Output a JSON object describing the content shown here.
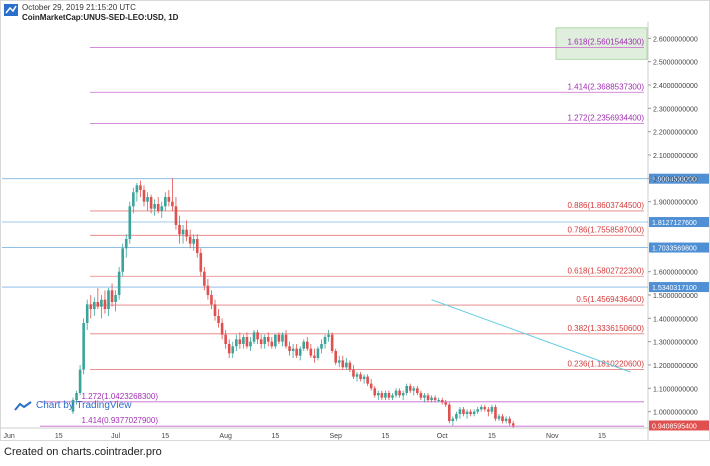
{
  "header": {
    "datetime": "October 29, 2019 21:15:20 UTC",
    "symbol": "CoinMarketCap:UNUS-SED-LEO:USD, 1D"
  },
  "watermark": {
    "text": "Chart by TradingView",
    "icon": "tradingview-logo-icon"
  },
  "footer": {
    "text": "Created on charts.cointrader.pro"
  },
  "colors": {
    "up": "#3aa39a",
    "down": "#e0504f",
    "fib_red": "#e57f7f",
    "fib_purple": "#c766cc",
    "fib_purple_text": "#a12fb3",
    "fib_red_text": "#d63a3a",
    "blue_line": "#7fb6e0",
    "trend": "#5fcbe0",
    "price_tag": "#4f8fd4",
    "last_price_tag": "#e0504f"
  },
  "chart_data": {
    "type": "candlestick",
    "x_ticks": [
      "Jun",
      "15",
      "Jul",
      "15",
      "Aug",
      "15",
      "Sep",
      "15",
      "Oct",
      "15",
      "Nov",
      "15"
    ],
    "y_ticks": [
      "2.6000000000",
      "2.5000000000",
      "2.4000000000",
      "2.3000000000",
      "2.2000000000",
      "2.1000000000",
      "2.0000000000",
      "1.9000000000",
      "1.6000000000",
      "1.5000000000",
      "1.4000000000",
      "1.3000000000",
      "1.2000000000",
      "1.1000000000",
      "1.0000000000"
    ],
    "ylim": [
      0.93,
      2.67
    ],
    "last_price": "0.9408595400",
    "price_levels": [
      {
        "label": "1.9984599200",
        "value": 1.99846
      },
      {
        "label": "1.8127127600",
        "value": 1.81271
      },
      {
        "label": "1.7033569800",
        "value": 1.70336
      },
      {
        "label": "1.5340317100",
        "value": 1.53403
      }
    ],
    "fib_levels": [
      {
        "label": "1.618(2.5601544300)",
        "value": 2.56015,
        "color": "purple",
        "highlight": true
      },
      {
        "label": "1.414(2.3688537300)",
        "value": 2.36885,
        "color": "purple"
      },
      {
        "label": "1.272(2.2356934400)",
        "value": 2.23569,
        "color": "purple"
      },
      {
        "label": "0.886(1.8603744500)",
        "value": 1.86037,
        "color": "red"
      },
      {
        "label": "0.786(1.7558587000)",
        "value": 1.75586,
        "color": "red"
      },
      {
        "label": "0.618(1.5802722300)",
        "value": 1.58027,
        "color": "red"
      },
      {
        "label": "0.5(1.4569436400)",
        "value": 1.45694,
        "color": "red"
      },
      {
        "label": "0.382(1.3336150600)",
        "value": 1.33362,
        "color": "red"
      },
      {
        "label": "0.236(1.1810220600)",
        "value": 1.18102,
        "color": "red"
      },
      {
        "label": "1.272(1.0423268300)",
        "value": 1.04233,
        "color": "purple",
        "left_label": true
      },
      {
        "label": "1.414(0.9377027900)",
        "value": 0.9377,
        "color": "purple",
        "left_label": true
      }
    ],
    "trendline": {
      "from": {
        "day": 119,
        "price": 1.48
      },
      "to": {
        "day": 175,
        "price": 1.17
      }
    },
    "candles": [
      {
        "d": 18,
        "o": 1.0,
        "h": 1.06,
        "l": 0.99,
        "c": 1.05
      },
      {
        "d": 19,
        "o": 1.05,
        "h": 1.09,
        "l": 1.03,
        "c": 1.08
      },
      {
        "d": 20,
        "o": 1.08,
        "h": 1.2,
        "l": 1.07,
        "c": 1.18
      },
      {
        "d": 21,
        "o": 1.18,
        "h": 1.4,
        "l": 1.16,
        "c": 1.38
      },
      {
        "d": 22,
        "o": 1.38,
        "h": 1.48,
        "l": 1.35,
        "c": 1.46
      },
      {
        "d": 23,
        "o": 1.46,
        "h": 1.5,
        "l": 1.4,
        "c": 1.44
      },
      {
        "d": 24,
        "o": 1.44,
        "h": 1.49,
        "l": 1.41,
        "c": 1.47
      },
      {
        "d": 25,
        "o": 1.47,
        "h": 1.53,
        "l": 1.44,
        "c": 1.45
      },
      {
        "d": 26,
        "o": 1.45,
        "h": 1.5,
        "l": 1.4,
        "c": 1.48
      },
      {
        "d": 27,
        "o": 1.48,
        "h": 1.52,
        "l": 1.42,
        "c": 1.44
      },
      {
        "d": 28,
        "o": 1.44,
        "h": 1.53,
        "l": 1.41,
        "c": 1.52
      },
      {
        "d": 29,
        "o": 1.52,
        "h": 1.55,
        "l": 1.45,
        "c": 1.47
      },
      {
        "d": 30,
        "o": 1.47,
        "h": 1.52,
        "l": 1.43,
        "c": 1.5
      },
      {
        "d": 31,
        "o": 1.5,
        "h": 1.62,
        "l": 1.48,
        "c": 1.6
      },
      {
        "d": 32,
        "o": 1.6,
        "h": 1.72,
        "l": 1.58,
        "c": 1.7
      },
      {
        "d": 33,
        "o": 1.7,
        "h": 1.76,
        "l": 1.66,
        "c": 1.74
      },
      {
        "d": 34,
        "o": 1.74,
        "h": 1.9,
        "l": 1.72,
        "c": 1.88
      },
      {
        "d": 35,
        "o": 1.88,
        "h": 1.96,
        "l": 1.85,
        "c": 1.94
      },
      {
        "d": 36,
        "o": 1.94,
        "h": 1.98,
        "l": 1.9,
        "c": 1.97
      },
      {
        "d": 37,
        "o": 1.97,
        "h": 1.99,
        "l": 1.92,
        "c": 1.95
      },
      {
        "d": 38,
        "o": 1.95,
        "h": 1.97,
        "l": 1.88,
        "c": 1.9
      },
      {
        "d": 39,
        "o": 1.9,
        "h": 1.94,
        "l": 1.86,
        "c": 1.92
      },
      {
        "d": 40,
        "o": 1.92,
        "h": 1.93,
        "l": 1.85,
        "c": 1.87
      },
      {
        "d": 41,
        "o": 1.87,
        "h": 1.91,
        "l": 1.84,
        "c": 1.89
      },
      {
        "d": 42,
        "o": 1.89,
        "h": 1.92,
        "l": 1.85,
        "c": 1.86
      },
      {
        "d": 43,
        "o": 1.86,
        "h": 1.9,
        "l": 1.83,
        "c": 1.88
      },
      {
        "d": 44,
        "o": 1.88,
        "h": 1.94,
        "l": 1.86,
        "c": 1.92
      },
      {
        "d": 45,
        "o": 1.92,
        "h": 1.95,
        "l": 1.88,
        "c": 1.9
      },
      {
        "d": 46,
        "o": 1.9,
        "h": 2.0,
        "l": 1.86,
        "c": 1.88
      },
      {
        "d": 47,
        "o": 1.88,
        "h": 1.92,
        "l": 1.78,
        "c": 1.8
      },
      {
        "d": 48,
        "o": 1.8,
        "h": 1.84,
        "l": 1.72,
        "c": 1.76
      },
      {
        "d": 49,
        "o": 1.76,
        "h": 1.8,
        "l": 1.72,
        "c": 1.78
      },
      {
        "d": 50,
        "o": 1.78,
        "h": 1.82,
        "l": 1.73,
        "c": 1.75
      },
      {
        "d": 51,
        "o": 1.75,
        "h": 1.78,
        "l": 1.7,
        "c": 1.72
      },
      {
        "d": 52,
        "o": 1.72,
        "h": 1.76,
        "l": 1.69,
        "c": 1.74
      },
      {
        "d": 53,
        "o": 1.74,
        "h": 1.76,
        "l": 1.66,
        "c": 1.68
      },
      {
        "d": 54,
        "o": 1.68,
        "h": 1.7,
        "l": 1.58,
        "c": 1.6
      },
      {
        "d": 55,
        "o": 1.6,
        "h": 1.62,
        "l": 1.52,
        "c": 1.54
      },
      {
        "d": 56,
        "o": 1.54,
        "h": 1.57,
        "l": 1.48,
        "c": 1.5
      },
      {
        "d": 57,
        "o": 1.5,
        "h": 1.52,
        "l": 1.44,
        "c": 1.46
      },
      {
        "d": 58,
        "o": 1.46,
        "h": 1.48,
        "l": 1.39,
        "c": 1.41
      },
      {
        "d": 59,
        "o": 1.41,
        "h": 1.44,
        "l": 1.36,
        "c": 1.38
      },
      {
        "d": 60,
        "o": 1.38,
        "h": 1.4,
        "l": 1.31,
        "c": 1.33
      },
      {
        "d": 61,
        "o": 1.33,
        "h": 1.35,
        "l": 1.27,
        "c": 1.29
      },
      {
        "d": 62,
        "o": 1.29,
        "h": 1.31,
        "l": 1.23,
        "c": 1.25
      },
      {
        "d": 63,
        "o": 1.25,
        "h": 1.3,
        "l": 1.23,
        "c": 1.28
      },
      {
        "d": 64,
        "o": 1.28,
        "h": 1.33,
        "l": 1.26,
        "c": 1.31
      },
      {
        "d": 65,
        "o": 1.31,
        "h": 1.34,
        "l": 1.27,
        "c": 1.29
      },
      {
        "d": 66,
        "o": 1.29,
        "h": 1.33,
        "l": 1.27,
        "c": 1.32
      },
      {
        "d": 67,
        "o": 1.32,
        "h": 1.34,
        "l": 1.27,
        "c": 1.28
      },
      {
        "d": 68,
        "o": 1.28,
        "h": 1.32,
        "l": 1.26,
        "c": 1.3
      },
      {
        "d": 69,
        "o": 1.3,
        "h": 1.35,
        "l": 1.29,
        "c": 1.34
      },
      {
        "d": 70,
        "o": 1.34,
        "h": 1.35,
        "l": 1.29,
        "c": 1.31
      },
      {
        "d": 71,
        "o": 1.31,
        "h": 1.33,
        "l": 1.27,
        "c": 1.29
      },
      {
        "d": 72,
        "o": 1.29,
        "h": 1.33,
        "l": 1.27,
        "c": 1.32
      },
      {
        "d": 73,
        "o": 1.32,
        "h": 1.34,
        "l": 1.28,
        "c": 1.3
      },
      {
        "d": 74,
        "o": 1.3,
        "h": 1.32,
        "l": 1.27,
        "c": 1.28
      },
      {
        "d": 75,
        "o": 1.28,
        "h": 1.33,
        "l": 1.27,
        "c": 1.33
      },
      {
        "d": 76,
        "o": 1.33,
        "h": 1.34,
        "l": 1.29,
        "c": 1.3
      },
      {
        "d": 77,
        "o": 1.3,
        "h": 1.34,
        "l": 1.28,
        "c": 1.33
      },
      {
        "d": 78,
        "o": 1.33,
        "h": 1.35,
        "l": 1.27,
        "c": 1.28
      },
      {
        "d": 79,
        "o": 1.28,
        "h": 1.3,
        "l": 1.24,
        "c": 1.26
      },
      {
        "d": 80,
        "o": 1.26,
        "h": 1.29,
        "l": 1.23,
        "c": 1.27
      },
      {
        "d": 81,
        "o": 1.27,
        "h": 1.29,
        "l": 1.23,
        "c": 1.24
      },
      {
        "d": 82,
        "o": 1.24,
        "h": 1.28,
        "l": 1.22,
        "c": 1.27
      },
      {
        "d": 83,
        "o": 1.27,
        "h": 1.31,
        "l": 1.26,
        "c": 1.3
      },
      {
        "d": 84,
        "o": 1.3,
        "h": 1.32,
        "l": 1.26,
        "c": 1.27
      },
      {
        "d": 85,
        "o": 1.27,
        "h": 1.29,
        "l": 1.23,
        "c": 1.24
      },
      {
        "d": 86,
        "o": 1.24,
        "h": 1.27,
        "l": 1.21,
        "c": 1.23
      },
      {
        "d": 87,
        "o": 1.23,
        "h": 1.28,
        "l": 1.22,
        "c": 1.27
      },
      {
        "d": 88,
        "o": 1.27,
        "h": 1.31,
        "l": 1.25,
        "c": 1.29
      },
      {
        "d": 89,
        "o": 1.29,
        "h": 1.33,
        "l": 1.27,
        "c": 1.32
      },
      {
        "d": 90,
        "o": 1.32,
        "h": 1.35,
        "l": 1.3,
        "c": 1.33
      },
      {
        "d": 91,
        "o": 1.33,
        "h": 1.34,
        "l": 1.25,
        "c": 1.26
      },
      {
        "d": 92,
        "o": 1.26,
        "h": 1.27,
        "l": 1.2,
        "c": 1.21
      },
      {
        "d": 93,
        "o": 1.21,
        "h": 1.24,
        "l": 1.19,
        "c": 1.22
      },
      {
        "d": 94,
        "o": 1.22,
        "h": 1.24,
        "l": 1.18,
        "c": 1.19
      },
      {
        "d": 95,
        "o": 1.19,
        "h": 1.23,
        "l": 1.18,
        "c": 1.21
      },
      {
        "d": 96,
        "o": 1.21,
        "h": 1.22,
        "l": 1.17,
        "c": 1.18
      },
      {
        "d": 97,
        "o": 1.18,
        "h": 1.2,
        "l": 1.14,
        "c": 1.15
      },
      {
        "d": 98,
        "o": 1.15,
        "h": 1.17,
        "l": 1.13,
        "c": 1.16
      },
      {
        "d": 99,
        "o": 1.16,
        "h": 1.17,
        "l": 1.13,
        "c": 1.14
      },
      {
        "d": 100,
        "o": 1.14,
        "h": 1.16,
        "l": 1.12,
        "c": 1.15
      },
      {
        "d": 101,
        "o": 1.15,
        "h": 1.16,
        "l": 1.11,
        "c": 1.12
      },
      {
        "d": 102,
        "o": 1.12,
        "h": 1.14,
        "l": 1.09,
        "c": 1.1
      },
      {
        "d": 103,
        "o": 1.1,
        "h": 1.11,
        "l": 1.06,
        "c": 1.07
      },
      {
        "d": 104,
        "o": 1.07,
        "h": 1.09,
        "l": 1.05,
        "c": 1.08
      },
      {
        "d": 105,
        "o": 1.08,
        "h": 1.09,
        "l": 1.05,
        "c": 1.06
      },
      {
        "d": 106,
        "o": 1.06,
        "h": 1.09,
        "l": 1.05,
        "c": 1.08
      },
      {
        "d": 107,
        "o": 1.08,
        "h": 1.09,
        "l": 1.05,
        "c": 1.06
      },
      {
        "d": 108,
        "o": 1.06,
        "h": 1.08,
        "l": 1.05,
        "c": 1.07
      },
      {
        "d": 109,
        "o": 1.07,
        "h": 1.1,
        "l": 1.06,
        "c": 1.09
      },
      {
        "d": 110,
        "o": 1.09,
        "h": 1.1,
        "l": 1.06,
        "c": 1.07
      },
      {
        "d": 111,
        "o": 1.07,
        "h": 1.09,
        "l": 1.05,
        "c": 1.08
      },
      {
        "d": 112,
        "o": 1.08,
        "h": 1.12,
        "l": 1.07,
        "c": 1.11
      },
      {
        "d": 113,
        "o": 1.11,
        "h": 1.12,
        "l": 1.08,
        "c": 1.09
      },
      {
        "d": 114,
        "o": 1.09,
        "h": 1.11,
        "l": 1.07,
        "c": 1.1
      },
      {
        "d": 115,
        "o": 1.1,
        "h": 1.11,
        "l": 1.07,
        "c": 1.08
      },
      {
        "d": 116,
        "o": 1.08,
        "h": 1.09,
        "l": 1.05,
        "c": 1.06
      },
      {
        "d": 117,
        "o": 1.06,
        "h": 1.08,
        "l": 1.04,
        "c": 1.07
      },
      {
        "d": 118,
        "o": 1.07,
        "h": 1.08,
        "l": 1.04,
        "c": 1.05
      },
      {
        "d": 119,
        "o": 1.05,
        "h": 1.07,
        "l": 1.04,
        "c": 1.06
      },
      {
        "d": 120,
        "o": 1.06,
        "h": 1.07,
        "l": 1.04,
        "c": 1.05
      },
      {
        "d": 121,
        "o": 1.05,
        "h": 1.06,
        "l": 1.04,
        "c": 1.05
      },
      {
        "d": 122,
        "o": 1.05,
        "h": 1.06,
        "l": 1.03,
        "c": 1.04
      },
      {
        "d": 123,
        "o": 1.04,
        "h": 1.05,
        "l": 1.02,
        "c": 1.03
      },
      {
        "d": 124,
        "o": 1.03,
        "h": 1.04,
        "l": 0.95,
        "c": 0.96
      },
      {
        "d": 125,
        "o": 0.96,
        "h": 0.98,
        "l": 0.94,
        "c": 0.97
      },
      {
        "d": 126,
        "o": 0.97,
        "h": 1.0,
        "l": 0.96,
        "c": 0.99
      },
      {
        "d": 127,
        "o": 0.99,
        "h": 1.02,
        "l": 0.97,
        "c": 1.01
      },
      {
        "d": 128,
        "o": 1.01,
        "h": 1.02,
        "l": 0.98,
        "c": 0.99
      },
      {
        "d": 129,
        "o": 0.99,
        "h": 1.01,
        "l": 0.97,
        "c": 1.0
      },
      {
        "d": 130,
        "o": 1.0,
        "h": 1.01,
        "l": 0.98,
        "c": 0.99
      },
      {
        "d": 131,
        "o": 0.99,
        "h": 1.01,
        "l": 0.98,
        "c": 1.0
      },
      {
        "d": 132,
        "o": 1.0,
        "h": 1.02,
        "l": 0.99,
        "c": 1.01
      },
      {
        "d": 133,
        "o": 1.01,
        "h": 1.03,
        "l": 1.0,
        "c": 1.02
      },
      {
        "d": 134,
        "o": 1.02,
        "h": 1.03,
        "l": 1.0,
        "c": 1.01
      },
      {
        "d": 135,
        "o": 1.01,
        "h": 1.02,
        "l": 0.98,
        "c": 1.0
      },
      {
        "d": 136,
        "o": 1.0,
        "h": 1.03,
        "l": 0.99,
        "c": 1.02
      },
      {
        "d": 137,
        "o": 1.02,
        "h": 1.03,
        "l": 0.96,
        "c": 0.97
      },
      {
        "d": 138,
        "o": 0.97,
        "h": 0.99,
        "l": 0.96,
        "c": 0.98
      },
      {
        "d": 139,
        "o": 0.98,
        "h": 0.99,
        "l": 0.95,
        "c": 0.96
      },
      {
        "d": 140,
        "o": 0.96,
        "h": 0.98,
        "l": 0.95,
        "c": 0.97
      },
      {
        "d": 141,
        "o": 0.97,
        "h": 0.98,
        "l": 0.94,
        "c": 0.95
      },
      {
        "d": 142,
        "o": 0.95,
        "h": 0.96,
        "l": 0.93,
        "c": 0.94
      }
    ]
  }
}
